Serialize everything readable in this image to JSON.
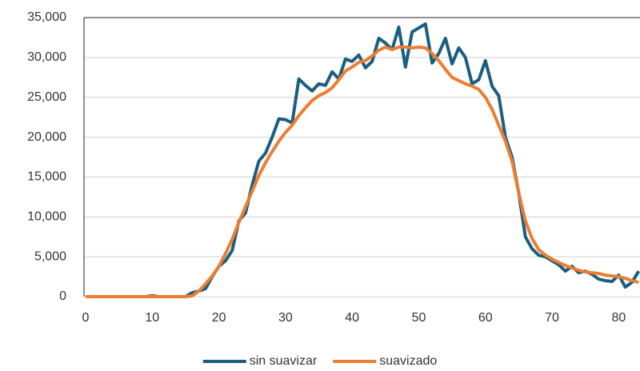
{
  "chart_data": {
    "type": "line",
    "x": [
      0,
      1,
      2,
      3,
      4,
      5,
      6,
      7,
      8,
      9,
      10,
      11,
      12,
      13,
      14,
      15,
      16,
      17,
      18,
      19,
      20,
      21,
      22,
      23,
      24,
      25,
      26,
      27,
      28,
      29,
      30,
      31,
      32,
      33,
      34,
      35,
      36,
      37,
      38,
      39,
      40,
      41,
      42,
      43,
      44,
      45,
      46,
      47,
      48,
      49,
      50,
      51,
      52,
      53,
      54,
      55,
      56,
      57,
      58,
      59,
      60,
      61,
      62,
      63,
      64,
      65,
      66,
      67,
      68,
      69,
      70,
      71,
      72,
      73,
      74,
      75,
      76,
      77,
      78,
      79,
      80,
      81,
      82,
      83
    ],
    "series": [
      {
        "name": "sin suavizar",
        "color": "#1b5e80",
        "values": [
          0,
          0,
          0,
          0,
          0,
          0,
          0,
          0,
          0,
          0,
          100,
          0,
          0,
          0,
          0,
          0,
          500,
          700,
          1000,
          2500,
          3800,
          4500,
          5800,
          9500,
          10500,
          14000,
          17000,
          18000,
          20000,
          22300,
          22200,
          21800,
          27300,
          26500,
          25800,
          26700,
          26500,
          28200,
          27300,
          29800,
          29500,
          30300,
          28700,
          29500,
          32400,
          31800,
          31000,
          33800,
          28800,
          33200,
          33700,
          34200,
          29300,
          30500,
          32400,
          29200,
          31200,
          30000,
          26700,
          27200,
          29600,
          26400,
          25200,
          20000,
          17500,
          13000,
          7500,
          6000,
          5200,
          5000,
          4500,
          4000,
          3200,
          3800,
          3000,
          3200,
          2800,
          2200,
          2000,
          1900,
          2700,
          1200,
          1800,
          3200
        ]
      },
      {
        "name": "suavizado",
        "color": "#ed7d31",
        "values": [
          0,
          0,
          0,
          0,
          0,
          0,
          0,
          0,
          0,
          0,
          0,
          0,
          0,
          0,
          0,
          0,
          100,
          700,
          1600,
          2600,
          3800,
          5400,
          7200,
          9300,
          11300,
          13200,
          15200,
          16800,
          18200,
          19500,
          20600,
          21500,
          22700,
          23700,
          24600,
          25200,
          25600,
          26200,
          27200,
          28300,
          28800,
          29400,
          29600,
          30200,
          30900,
          31300,
          31000,
          31300,
          31300,
          31200,
          31300,
          31200,
          30500,
          29600,
          28500,
          27500,
          27100,
          26700,
          26400,
          26000,
          25000,
          23500,
          21500,
          19500,
          17000,
          13000,
          9500,
          7300,
          5900,
          5200,
          4700,
          4300,
          3900,
          3600,
          3300,
          3100,
          3000,
          2900,
          2700,
          2600,
          2500,
          2300,
          2000,
          1800
        ]
      }
    ],
    "xlim": [
      0,
      83.2
    ],
    "xticks": [
      0,
      10,
      20,
      30,
      40,
      50,
      60,
      70,
      80
    ],
    "ylim": [
      0,
      35000
    ],
    "yticks": [
      0,
      {
        "value": 5000,
        "label": "5,000"
      },
      {
        "value": 10000,
        "label": "10,000"
      },
      {
        "value": 15000,
        "label": "15,000"
      },
      {
        "value": 20000,
        "label": "20,000"
      },
      {
        "value": 25000,
        "label": "25,000"
      },
      {
        "value": 30000,
        "label": "30,000"
      },
      {
        "value": 35000,
        "label": "35,000"
      }
    ],
    "grid": true,
    "legend": "bottom"
  }
}
